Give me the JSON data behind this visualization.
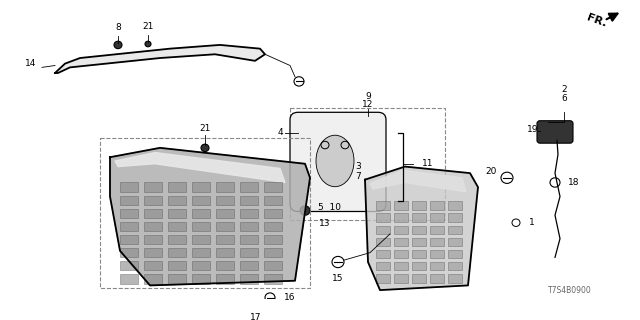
{
  "bg_color": "#ffffff",
  "line_color": "#000000",
  "part_number_code": "T7S4B0900",
  "figsize": [
    6.4,
    3.2
  ],
  "dpi": 100
}
